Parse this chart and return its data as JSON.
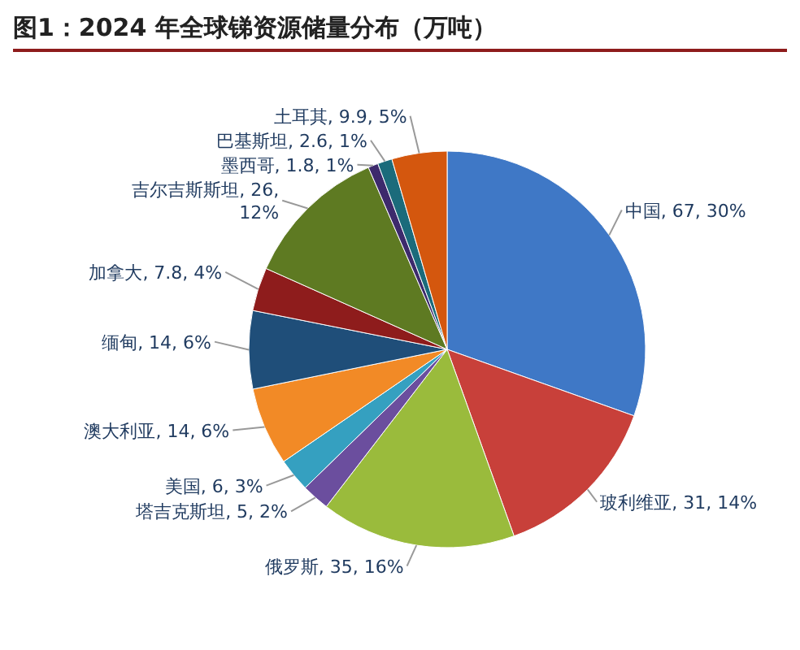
{
  "chart_data": {
    "type": "pie",
    "title": "图1：2024 年全球锑资源储量分布（万吨）",
    "categories": [
      "中国",
      "玻利维亚",
      "俄罗斯",
      "塔吉克斯坦",
      "美国",
      "澳大利亚",
      "缅甸",
      "加拿大",
      "吉尔吉斯斯坦",
      "墨西哥",
      "巴基斯坦",
      "土耳其"
    ],
    "values": [
      67,
      31,
      35,
      5,
      6,
      14,
      14,
      7.8,
      26,
      1.8,
      2.6,
      9.9
    ],
    "value_labels": [
      "67, 30%",
      "31, 14%",
      "35, 16%",
      "5, 2%",
      "6, 3%",
      "14, 6%",
      "14, 6%",
      "7.8, 4%",
      "26, 12%",
      "1.8, 1%",
      "2.6, 1%",
      "9.9, 5%"
    ],
    "colors": [
      "#3f78c6",
      "#c8403a",
      "#9abb3c",
      "#6b4e9e",
      "#35a0c0",
      "#f28a26",
      "#1f4e79",
      "#8e1c1c",
      "#5e7a22",
      "#3d2a6c",
      "#1b6b7b",
      "#d4570e"
    ]
  }
}
